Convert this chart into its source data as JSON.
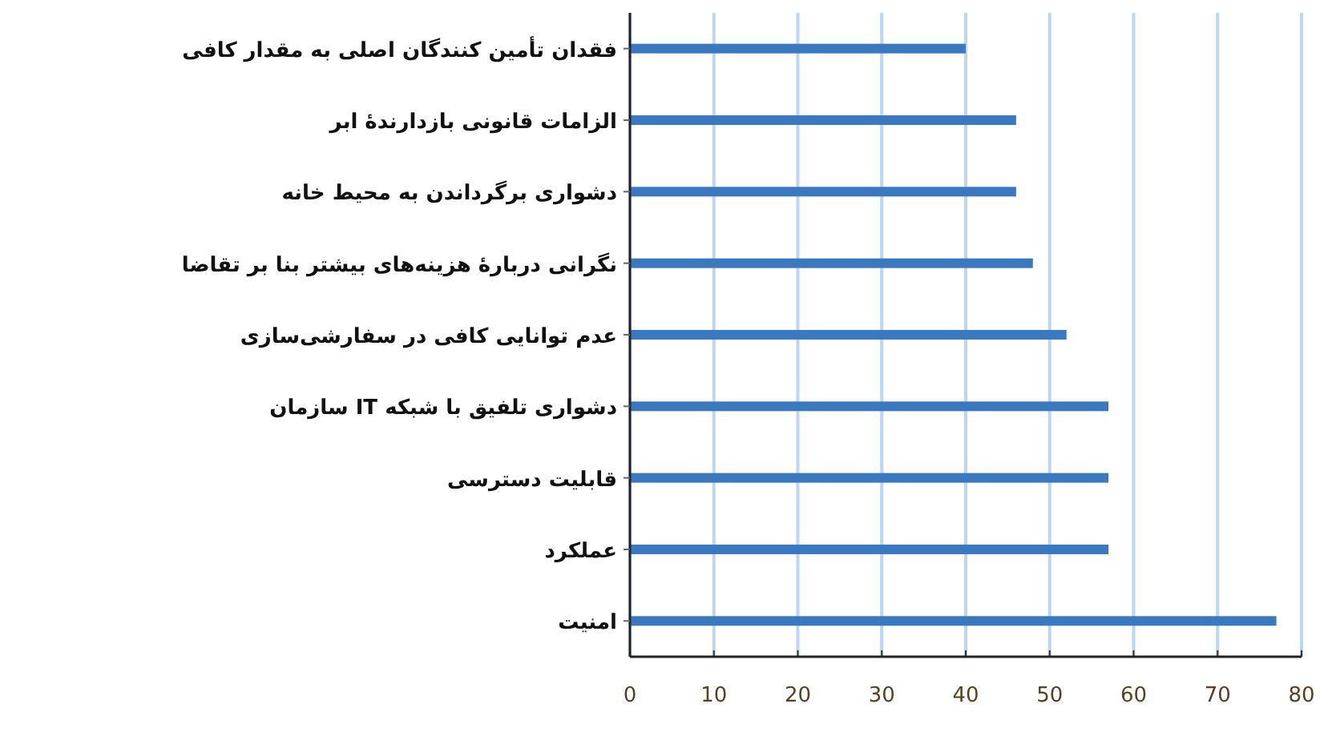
{
  "chart_data": {
    "type": "bar",
    "orientation": "horizontal",
    "categories": [
      "فقدان تأمین کنندگان اصلی به مقدار کافی",
      "الزامات قانونی بازدارندهٔ ابر",
      "دشواری برگرداندن به محیط خانه",
      "نگرانی دربارهٔ هزینه‌های بیشتر بنا بر تقاضا",
      "عدم توانایی کافی در سفارشی‌سازی",
      "دشواری تلفیق با شبکه IT سازمان",
      "قابلیت دسترسی",
      "عملکرد",
      "امنیت"
    ],
    "values": [
      40,
      46,
      46,
      48,
      52,
      57,
      57,
      57,
      77
    ],
    "color": "#3a78c0",
    "xlim": [
      0,
      80
    ],
    "xticks": [
      0,
      10,
      20,
      30,
      40,
      50,
      60,
      70,
      80
    ],
    "grid": "x"
  }
}
